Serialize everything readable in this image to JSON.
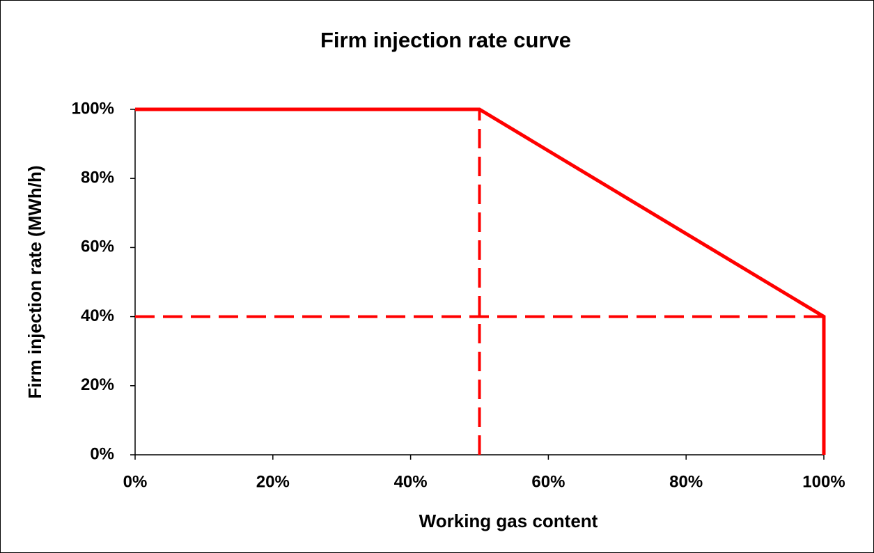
{
  "chart_data": {
    "type": "line",
    "title": "Firm injection rate curve",
    "xlabel": "Working gas content",
    "ylabel": "Firm injection rate (MWh/h)",
    "xlim": [
      0,
      100
    ],
    "ylim": [
      0,
      100
    ],
    "xticks": [
      {
        "value": 0,
        "label": "0%"
      },
      {
        "value": 20,
        "label": "20%"
      },
      {
        "value": 40,
        "label": "40%"
      },
      {
        "value": 60,
        "label": "60%"
      },
      {
        "value": 80,
        "label": "80%"
      },
      {
        "value": 100,
        "label": "100%"
      }
    ],
    "yticks": [
      {
        "value": 0,
        "label": "0%"
      },
      {
        "value": 20,
        "label": "20%"
      },
      {
        "value": 40,
        "label": "40%"
      },
      {
        "value": 60,
        "label": "60%"
      },
      {
        "value": 80,
        "label": "80%"
      },
      {
        "value": 100,
        "label": "100%"
      }
    ],
    "grid": false,
    "series": [
      {
        "color": "#ff0000",
        "dashed": false,
        "x": [
          0,
          50,
          100,
          100
        ],
        "values": [
          100,
          100,
          40,
          0
        ]
      },
      {
        "color": "#ff0000",
        "dashed": true,
        "x": [
          50,
          50
        ],
        "values": [
          0,
          100
        ]
      },
      {
        "color": "#ff0000",
        "dashed": true,
        "x": [
          0,
          100
        ],
        "values": [
          40,
          40
        ]
      }
    ]
  }
}
